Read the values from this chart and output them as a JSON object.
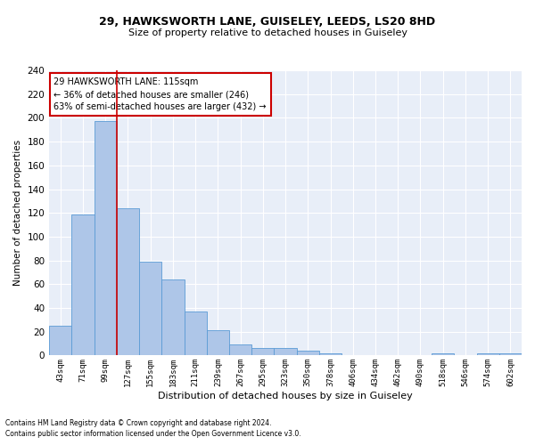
{
  "title1": "29, HAWKSWORTH LANE, GUISELEY, LEEDS, LS20 8HD",
  "title2": "Size of property relative to detached houses in Guiseley",
  "xlabel": "Distribution of detached houses by size in Guiseley",
  "ylabel": "Number of detached properties",
  "bar_labels": [
    "43sqm",
    "71sqm",
    "99sqm",
    "127sqm",
    "155sqm",
    "183sqm",
    "211sqm",
    "239sqm",
    "267sqm",
    "295sqm",
    "323sqm",
    "350sqm",
    "378sqm",
    "406sqm",
    "434sqm",
    "462sqm",
    "490sqm",
    "518sqm",
    "546sqm",
    "574sqm",
    "602sqm"
  ],
  "bar_values": [
    25,
    119,
    197,
    124,
    79,
    64,
    37,
    21,
    9,
    6,
    6,
    4,
    2,
    0,
    0,
    0,
    0,
    2,
    0,
    2,
    2
  ],
  "bar_color": "#aec6e8",
  "bar_edge_color": "#5b9bd5",
  "background_color": "#e8eef8",
  "grid_color": "#ffffff",
  "property_line_x": 2.5,
  "annotation_text": "29 HAWKSWORTH LANE: 115sqm\n← 36% of detached houses are smaller (246)\n63% of semi-detached houses are larger (432) →",
  "annotation_box_color": "#ffffff",
  "annotation_box_edge_color": "#cc0000",
  "property_line_color": "#cc0000",
  "ylim": [
    0,
    240
  ],
  "yticks": [
    0,
    20,
    40,
    60,
    80,
    100,
    120,
    140,
    160,
    180,
    200,
    220,
    240
  ],
  "footer1": "Contains HM Land Registry data © Crown copyright and database right 2024.",
  "footer2": "Contains public sector information licensed under the Open Government Licence v3.0.",
  "fig_width": 6.0,
  "fig_height": 5.0,
  "fig_dpi": 100
}
